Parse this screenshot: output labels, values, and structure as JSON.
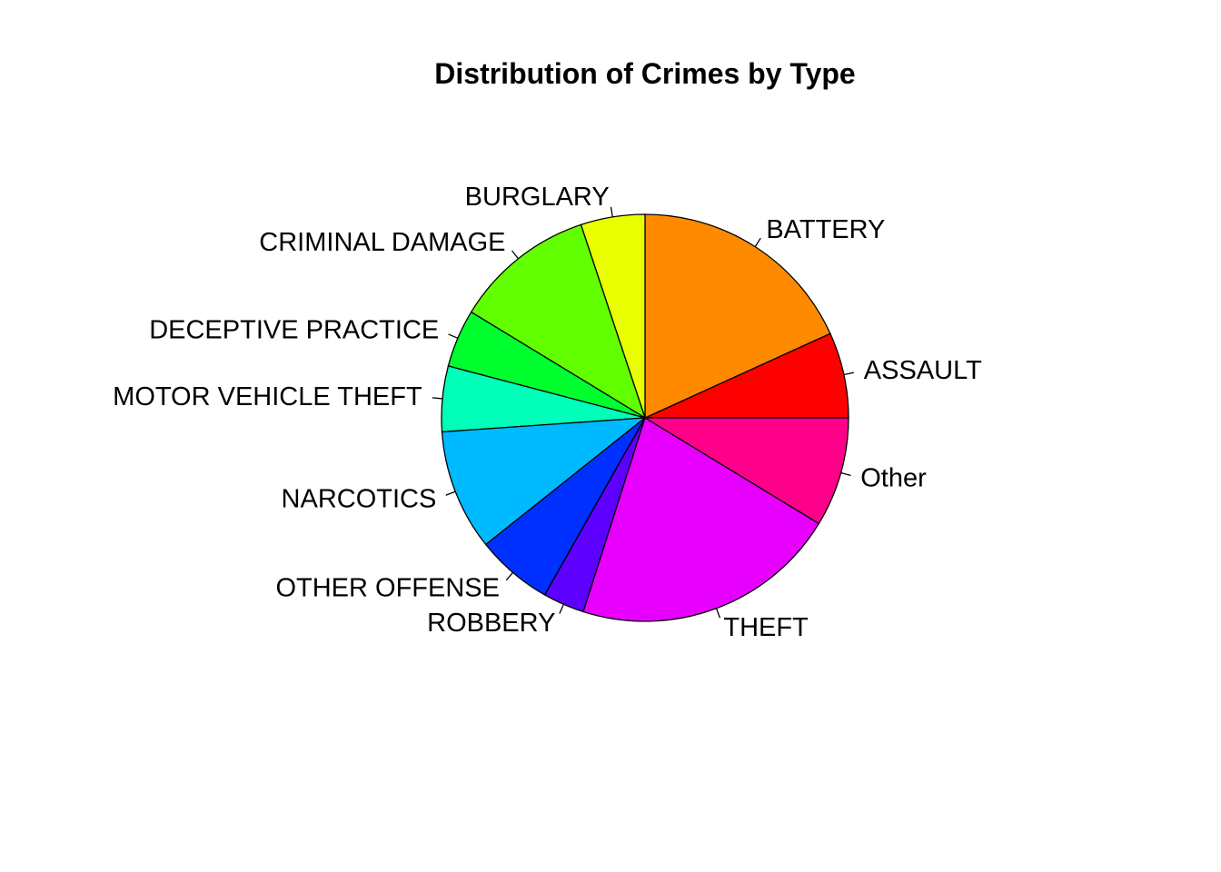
{
  "chart_data": {
    "type": "pie",
    "title": "Distribution of Crimes by Type",
    "direction": "counterclockwise",
    "start_angle_deg": 0,
    "slices": [
      {
        "label": "ASSAULT",
        "value": 6.8,
        "color": "#FF0000"
      },
      {
        "label": "BATTERY",
        "value": 18.2,
        "color": "#FF8A00"
      },
      {
        "label": "BURGLARY",
        "value": 5.1,
        "color": "#E8FF00"
      },
      {
        "label": "CRIMINAL DAMAGE",
        "value": 11.2,
        "color": "#62FF00"
      },
      {
        "label": "DECEPTIVE PRACTICE",
        "value": 4.6,
        "color": "#00FF2E"
      },
      {
        "label": "MOTOR VEHICLE THEFT",
        "value": 5.2,
        "color": "#00FFB8"
      },
      {
        "label": "NARCOTICS",
        "value": 9.6,
        "color": "#00BAFF"
      },
      {
        "label": "OTHER OFFENSE",
        "value": 6.1,
        "color": "#0030FF"
      },
      {
        "label": "ROBBERY",
        "value": 3.3,
        "color": "#5D00FF"
      },
      {
        "label": "THEFT",
        "value": 21.2,
        "color": "#E800FF"
      },
      {
        "label": "Other",
        "value": 8.7,
        "color": "#FF008B"
      }
    ]
  }
}
